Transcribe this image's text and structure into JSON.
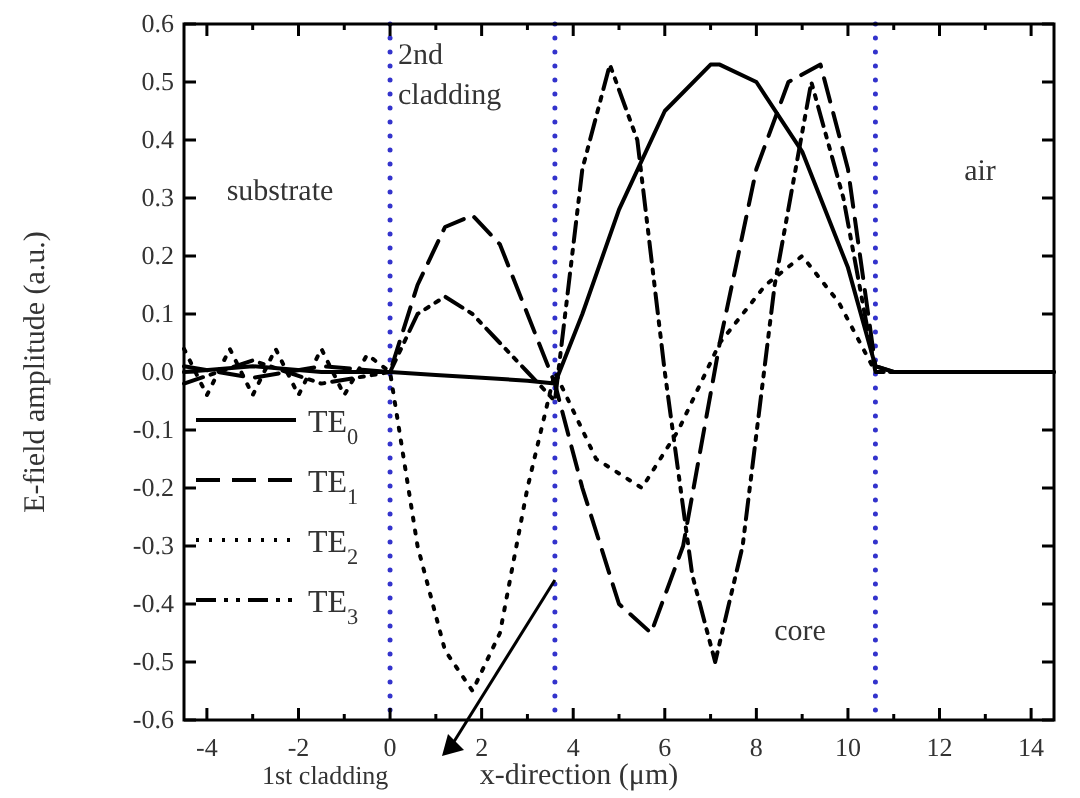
{
  "chart_data": {
    "type": "line",
    "xlabel": "x-direction (μm)",
    "ylabel": "E-field amplitude (a.u.)",
    "xlim": [
      -4.5,
      14.5
    ],
    "xticks": [
      -4,
      {
        "value": -3,
        "label": null
      },
      -2,
      {
        "value": -1,
        "label": null
      },
      0,
      {
        "value": 1,
        "label": null
      },
      2,
      {
        "value": 3,
        "label": null
      },
      4,
      {
        "value": 5,
        "label": null
      },
      6,
      {
        "value": 7,
        "label": null
      },
      8,
      {
        "value": 9,
        "label": null
      },
      10,
      {
        "value": 11,
        "label": null
      },
      12,
      {
        "value": 13,
        "label": null
      },
      14
    ],
    "ylim": [
      -0.6,
      0.6
    ],
    "yticks": [
      -0.6,
      -0.5,
      -0.4,
      -0.3,
      -0.2,
      -0.1,
      {
        "value": 0,
        "label": "0.0"
      },
      0.1,
      0.2,
      0.3,
      0.4,
      0.5,
      0.6
    ],
    "legend": "bottom left",
    "series": [
      {
        "name": "TE$_{0}$",
        "color": "#000000",
        "line_style": "solid",
        "x": [
          -4.5,
          -3,
          -1.5,
          0,
          1,
          2,
          3,
          3.6,
          4.2,
          5,
          6,
          7,
          7.2,
          8,
          9,
          10,
          10.6,
          11,
          12,
          14.5
        ],
        "values": [
          0,
          0.01,
          0,
          0,
          -0.005,
          -0.01,
          -0.015,
          -0.02,
          0.1,
          0.28,
          0.45,
          0.53,
          0.53,
          0.5,
          0.38,
          0.18,
          0.01,
          0,
          0,
          0
        ]
      },
      {
        "name": "TE$_{1}$",
        "color": "#000000",
        "line_style": "dashed",
        "x": [
          -4.5,
          -3,
          -1.5,
          0,
          0.6,
          1.2,
          1.8,
          2.4,
          3,
          3.6,
          4.2,
          5,
          5.7,
          6.4,
          7.2,
          8,
          8.7,
          9.4,
          10,
          10.6,
          11,
          14.5
        ],
        "values": [
          0.01,
          -0.01,
          0.01,
          0,
          0.15,
          0.25,
          0.27,
          0.22,
          0.1,
          -0.02,
          -0.2,
          -0.4,
          -0.45,
          -0.3,
          0.05,
          0.35,
          0.5,
          0.53,
          0.35,
          0.01,
          0,
          0
        ]
      },
      {
        "name": "TE$_{2}$",
        "color": "#000000",
        "line_style": "dotted",
        "x": [
          -4.5,
          -4,
          -3.5,
          -3,
          -2.5,
          -2,
          -1.5,
          -1,
          -0.5,
          0,
          0.6,
          1.2,
          1.8,
          2.4,
          3,
          3.6,
          4.5,
          5.5,
          6.3,
          7.2,
          8.2,
          9,
          9.8,
          10.6,
          11,
          14.5
        ],
        "values": [
          0.04,
          -0.04,
          0.04,
          -0.04,
          0.04,
          -0.04,
          0.04,
          -0.04,
          0.03,
          0,
          -0.3,
          -0.48,
          -0.55,
          -0.45,
          -0.2,
          0,
          -0.15,
          -0.2,
          -0.1,
          0.05,
          0.15,
          0.2,
          0.12,
          0,
          0,
          0
        ]
      },
      {
        "name": "TE$_{3}$",
        "color": "#000000",
        "line_style": "dashdot",
        "x": [
          -4.5,
          -3,
          -1.5,
          0,
          0.6,
          1.2,
          1.8,
          2.4,
          3,
          3.6,
          4.2,
          4.8,
          5.4,
          6,
          6.6,
          7.1,
          7.7,
          8.4,
          9.2,
          9.9,
          10.6,
          11,
          14.5
        ],
        "values": [
          -0.02,
          0.02,
          -0.02,
          0,
          0.1,
          0.13,
          0.1,
          0.05,
          0,
          -0.05,
          0.35,
          0.53,
          0.4,
          0,
          -0.35,
          -0.5,
          -0.3,
          0.15,
          0.5,
          0.3,
          0,
          0,
          0
        ]
      }
    ],
    "ref_lines": [
      {
        "axis": "x",
        "value": 0,
        "color": "#3333cc",
        "line_style": "dotted"
      },
      {
        "axis": "x",
        "value": 3.6,
        "color": "#3333cc",
        "line_style": "dotted"
      },
      {
        "axis": "x",
        "value": 10.6,
        "color": "#3333cc",
        "line_style": "dotted"
      }
    ],
    "annotations": [
      "substrate",
      "2nd cladding",
      "air",
      "core",
      "1st cladding"
    ]
  }
}
